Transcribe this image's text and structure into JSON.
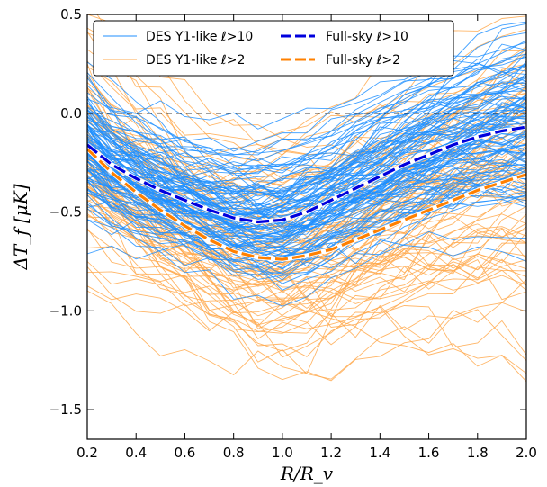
{
  "chart_data": {
    "type": "line",
    "xlabel": "R/R_v",
    "ylabel": "ΔT_f [μK]",
    "xlim": [
      0.2,
      2.0
    ],
    "ylim": [
      -1.65,
      0.5
    ],
    "xticks": [
      "0.2",
      "0.4",
      "0.6",
      "0.8",
      "1.0",
      "1.2",
      "1.4",
      "1.6",
      "1.8",
      "2.0"
    ],
    "yticks": [
      "0.5",
      "0.0",
      "−0.5",
      "−1.0",
      "−1.5"
    ],
    "reference_line_y": 0.0,
    "legend_position": "top",
    "colors": {
      "des10": "#1f8fff",
      "des2": "#ffa94d",
      "full10": "#0000dd",
      "full2": "#ff8000"
    },
    "series": [
      {
        "name": "Full-sky ℓ>10",
        "x": [
          0.2,
          0.3,
          0.4,
          0.5,
          0.6,
          0.7,
          0.8,
          0.9,
          1.0,
          1.1,
          1.2,
          1.3,
          1.4,
          1.5,
          1.6,
          1.7,
          1.8,
          1.9,
          2.0
        ],
        "values": [
          -0.16,
          -0.26,
          -0.33,
          -0.39,
          -0.44,
          -0.49,
          -0.53,
          -0.55,
          -0.54,
          -0.5,
          -0.44,
          -0.38,
          -0.32,
          -0.26,
          -0.21,
          -0.16,
          -0.12,
          -0.09,
          -0.07
        ]
      },
      {
        "name": "Full-sky ℓ>2",
        "x": [
          0.2,
          0.3,
          0.4,
          0.5,
          0.6,
          0.7,
          0.8,
          0.9,
          1.0,
          1.1,
          1.2,
          1.3,
          1.4,
          1.5,
          1.6,
          1.7,
          1.8,
          1.9,
          2.0
        ],
        "values": [
          -0.18,
          -0.3,
          -0.4,
          -0.49,
          -0.57,
          -0.64,
          -0.7,
          -0.73,
          -0.74,
          -0.72,
          -0.69,
          -0.64,
          -0.59,
          -0.54,
          -0.49,
          -0.44,
          -0.39,
          -0.35,
          -0.31
        ]
      },
      {
        "name": "DES Y1-like ℓ>10"
      },
      {
        "name": "DES Y1-like ℓ>2"
      }
    ]
  }
}
